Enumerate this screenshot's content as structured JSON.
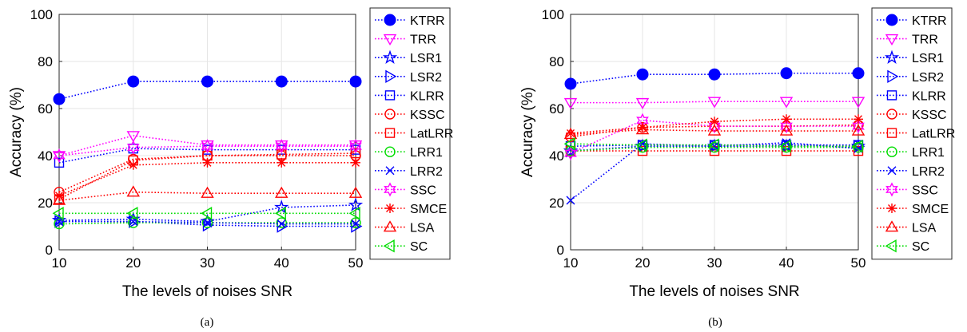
{
  "series_styles": [
    {
      "name": "KTRR",
      "color": "#0000ff",
      "marker": "filled-circle"
    },
    {
      "name": "TRR",
      "color": "#ff00ff",
      "marker": "triangle-down"
    },
    {
      "name": "LSR1",
      "color": "#0000ff",
      "marker": "pentagram"
    },
    {
      "name": "LSR2",
      "color": "#0000ff",
      "marker": "triangle-right"
    },
    {
      "name": "KLRR",
      "color": "#0000ff",
      "marker": "square"
    },
    {
      "name": "KSSC",
      "color": "#ff0000",
      "marker": "circle"
    },
    {
      "name": "LatLRR",
      "color": "#ff0000",
      "marker": "square"
    },
    {
      "name": "LRR1",
      "color": "#00dd00",
      "marker": "circle"
    },
    {
      "name": "LRR2",
      "color": "#0000ff",
      "marker": "x"
    },
    {
      "name": "SSC",
      "color": "#ff00ff",
      "marker": "hexagram"
    },
    {
      "name": "SMCE",
      "color": "#ff0000",
      "marker": "asterisk"
    },
    {
      "name": "LSA",
      "color": "#ff0000",
      "marker": "triangle-up"
    },
    {
      "name": "SC",
      "color": "#00dd00",
      "marker": "triangle-left"
    }
  ],
  "chart_data": [
    {
      "type": "line",
      "caption": "(a)",
      "xlabel": "The levels of noises SNR",
      "ylabel": "Accuracy (%)",
      "x": [
        10,
        20,
        30,
        40,
        50
      ],
      "xlim": [
        10,
        50
      ],
      "ylim": [
        0,
        100
      ],
      "xticks": [
        "10",
        "20",
        "30",
        "40",
        "50"
      ],
      "yticks": [
        "0",
        "20",
        "40",
        "60",
        "80",
        "100"
      ],
      "grid": true,
      "legend_position": "outside-right",
      "line_style": "dotted",
      "series": [
        {
          "name": "KTRR",
          "values": [
            64,
            71.5,
            71.5,
            71.5,
            71.5
          ]
        },
        {
          "name": "TRR",
          "values": [
            40,
            48.5,
            44.5,
            44.5,
            44.5
          ]
        },
        {
          "name": "LSR1",
          "values": [
            12.5,
            13,
            12,
            18,
            19
          ]
        },
        {
          "name": "LSR2",
          "values": [
            12,
            12,
            10.5,
            10,
            10
          ]
        },
        {
          "name": "KLRR",
          "values": [
            37,
            43,
            42.5,
            42.5,
            42.5
          ]
        },
        {
          "name": "KSSC",
          "values": [
            24.5,
            38.5,
            40,
            40,
            40
          ]
        },
        {
          "name": "LatLRR",
          "values": [
            21.5,
            38,
            40,
            40.5,
            41
          ]
        },
        {
          "name": "LRR1",
          "values": [
            11,
            11.5,
            11.5,
            11.5,
            11.5
          ]
        },
        {
          "name": "LRR2",
          "values": [
            12,
            12,
            11.5,
            11,
            11
          ]
        },
        {
          "name": "SSC",
          "values": [
            40,
            43.5,
            44,
            44,
            44
          ]
        },
        {
          "name": "SMCE",
          "values": [
            23,
            36,
            37,
            37,
            37
          ]
        },
        {
          "name": "LSA",
          "values": [
            21,
            24.5,
            24,
            24,
            24
          ]
        },
        {
          "name": "SC",
          "values": [
            15.5,
            15.5,
            15.5,
            15.5,
            15.5
          ]
        }
      ]
    },
    {
      "type": "line",
      "caption": "(b)",
      "xlabel": "The levels of noises SNR",
      "ylabel": "Accuracy (%)",
      "x": [
        10,
        20,
        30,
        40,
        50
      ],
      "xlim": [
        10,
        50
      ],
      "ylim": [
        0,
        100
      ],
      "xticks": [
        "10",
        "20",
        "30",
        "40",
        "50"
      ],
      "yticks": [
        "0",
        "20",
        "40",
        "60",
        "80",
        "100"
      ],
      "grid": true,
      "legend_position": "outside-right",
      "line_style": "dotted",
      "series": [
        {
          "name": "KTRR",
          "values": [
            70.5,
            74.5,
            74.5,
            75,
            75
          ]
        },
        {
          "name": "TRR",
          "values": [
            62.5,
            62.5,
            63,
            63,
            63
          ]
        },
        {
          "name": "LSR1",
          "values": [
            42,
            44,
            44,
            44,
            44
          ]
        },
        {
          "name": "LSR2",
          "values": [
            42,
            44,
            44,
            44,
            44
          ]
        },
        {
          "name": "KLRR",
          "values": [
            44,
            44.5,
            44.5,
            44.5,
            44.5
          ]
        },
        {
          "name": "KSSC",
          "values": [
            48,
            52,
            52.5,
            52.5,
            53
          ]
        },
        {
          "name": "LatLRR",
          "values": [
            42,
            42,
            42,
            42,
            42
          ]
        },
        {
          "name": "LRR1",
          "values": [
            42,
            43.5,
            43.5,
            43.5,
            43.5
          ]
        },
        {
          "name": "LRR2",
          "values": [
            21,
            45,
            44,
            45.5,
            43
          ]
        },
        {
          "name": "SSC",
          "values": [
            41,
            55,
            52.5,
            52.5,
            52.5
          ]
        },
        {
          "name": "SMCE",
          "values": [
            49.5,
            52,
            54.5,
            55.5,
            55.5
          ]
        },
        {
          "name": "LSA",
          "values": [
            49,
            51,
            50.5,
            50.5,
            50.5
          ]
        },
        {
          "name": "SC",
          "values": [
            45,
            44.5,
            44.5,
            44,
            44
          ]
        }
      ]
    }
  ]
}
